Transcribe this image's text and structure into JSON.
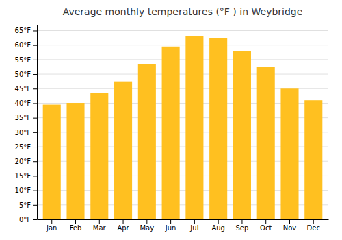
{
  "chart_data": {
    "type": "bar",
    "title": "Average monthly temperatures (°F ) in Weybridge",
    "categories": [
      "Jan",
      "Feb",
      "Mar",
      "Apr",
      "May",
      "Jun",
      "Jul",
      "Aug",
      "Sep",
      "Oct",
      "Nov",
      "Dec"
    ],
    "values": [
      39.5,
      40.1,
      43.5,
      47.5,
      53.5,
      59.5,
      63.0,
      62.5,
      58.0,
      52.5,
      45.0,
      41.0
    ],
    "color": "#FFC020",
    "ylim": [
      0,
      67
    ],
    "yticks": [
      {
        "value": 0,
        "label": "0°F"
      },
      {
        "value": 5,
        "label": "5°F"
      },
      {
        "value": 10,
        "label": "10°F"
      },
      {
        "value": 15,
        "label": "15°F"
      },
      {
        "value": 20,
        "label": "20°F"
      },
      {
        "value": 25,
        "label": "25°F"
      },
      {
        "value": 30,
        "label": "30°F"
      },
      {
        "value": 35,
        "label": "35°F"
      },
      {
        "value": 40,
        "label": "40°F"
      },
      {
        "value": 45,
        "label": "45°F"
      },
      {
        "value": 50,
        "label": "50°F"
      },
      {
        "value": 55,
        "label": "55°F"
      },
      {
        "value": 60,
        "label": "60°F"
      },
      {
        "value": 65,
        "label": "65°F"
      }
    ],
    "grid": true
  }
}
